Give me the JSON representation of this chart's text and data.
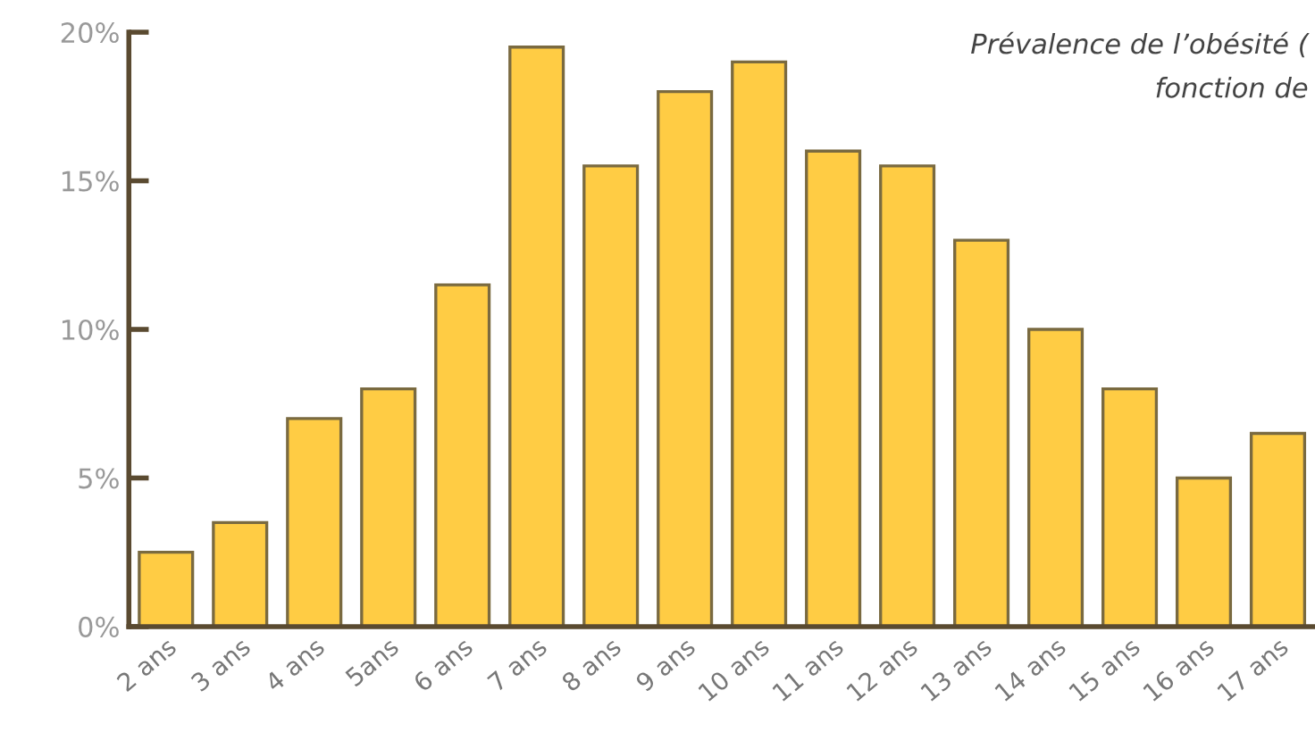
{
  "chart_data": {
    "type": "bar",
    "title": "Prévalence de l’obésité (",
    "subtitle": "fonction de",
    "categories": [
      "2 ans",
      "3 ans",
      "4 ans",
      "5ans",
      "6 ans",
      "7 ans",
      "8 ans",
      "9 ans",
      "10 ans",
      "11 ans",
      "12 ans",
      "13 ans",
      "14 ans",
      "15 ans",
      "16 ans",
      "17 ans"
    ],
    "values": [
      2.5,
      3.5,
      7,
      8,
      11.5,
      19.5,
      15.5,
      18,
      19,
      16,
      15.5,
      13,
      10,
      8,
      5,
      6.5
    ],
    "color": "#ffcc44",
    "ylim": [
      0,
      20
    ],
    "yticks": [
      {
        "value": 0,
        "label": "0%"
      },
      {
        "value": 5,
        "label": "5%"
      },
      {
        "value": 10,
        "label": "10%"
      },
      {
        "value": 15,
        "label": "15%"
      },
      {
        "value": 20,
        "label": "20%"
      }
    ],
    "grid": false
  }
}
